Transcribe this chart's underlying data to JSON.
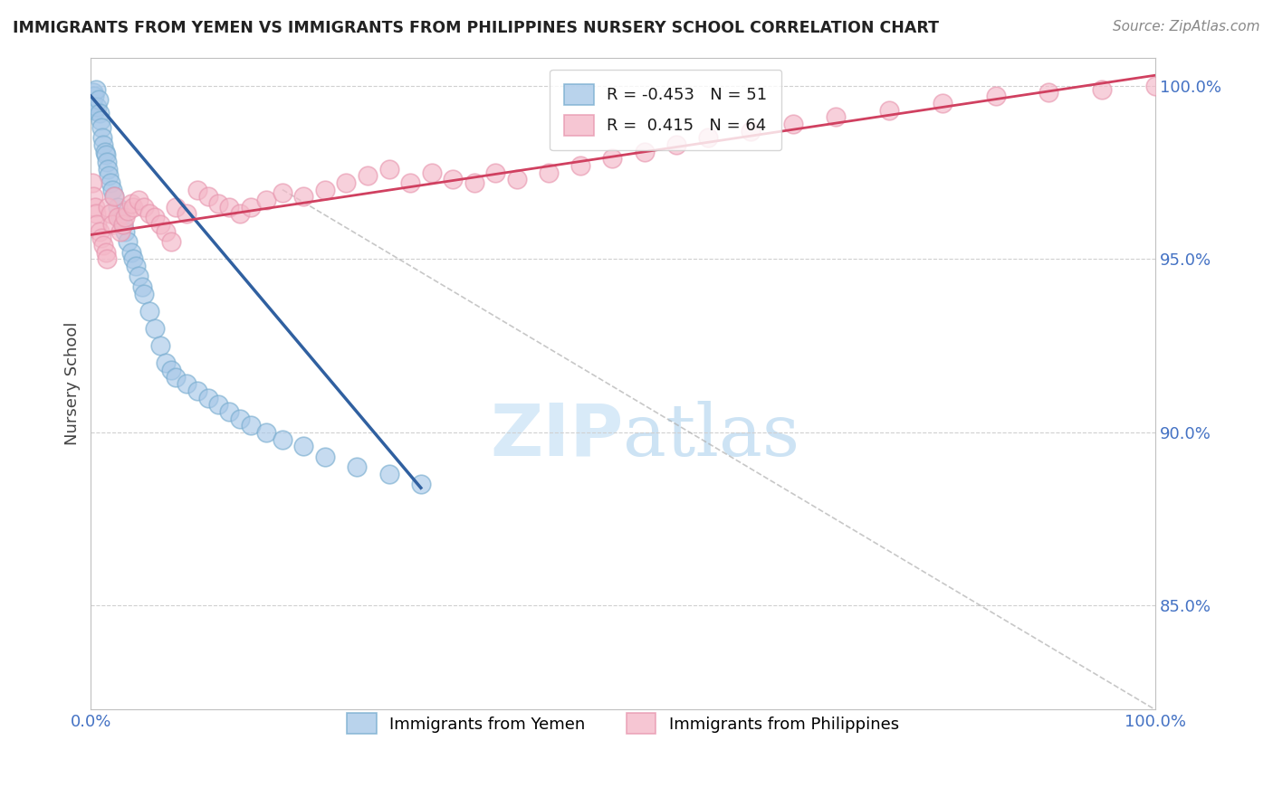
{
  "title": "IMMIGRANTS FROM YEMEN VS IMMIGRANTS FROM PHILIPPINES NURSERY SCHOOL CORRELATION CHART",
  "source": "Source: ZipAtlas.com",
  "ylabel": "Nursery School",
  "legend_R1": "-0.453",
  "legend_N1": "51",
  "legend_R2": "0.415",
  "legend_N2": "64",
  "blue_color": "#a8c8e8",
  "pink_color": "#f4b8c8",
  "blue_edge_color": "#7aaed0",
  "pink_edge_color": "#e898b0",
  "blue_line_color": "#3060a0",
  "pink_line_color": "#d04060",
  "watermark_color": "#d8eaf8",
  "grid_color": "#d0d0d0",
  "axis_color": "#c0c0c0",
  "tick_color": "#4472C4",
  "ylabel_color": "#444444",
  "title_color": "#222222",
  "source_color": "#888888",
  "background_color": "#ffffff",
  "xlim": [
    0.0,
    1.0
  ],
  "ylim": [
    0.82,
    1.008
  ],
  "yticks": [
    0.85,
    0.9,
    0.95,
    1.0
  ],
  "ytick_labels": [
    "85.0%",
    "90.0%",
    "95.0%",
    "100.0%"
  ],
  "yemen_x": [
    0.001,
    0.002,
    0.003,
    0.004,
    0.005,
    0.006,
    0.007,
    0.008,
    0.009,
    0.01,
    0.011,
    0.012,
    0.013,
    0.014,
    0.015,
    0.016,
    0.017,
    0.018,
    0.02,
    0.022,
    0.025,
    0.028,
    0.03,
    0.032,
    0.035,
    0.038,
    0.04,
    0.042,
    0.045,
    0.048,
    0.05,
    0.055,
    0.06,
    0.065,
    0.07,
    0.075,
    0.08,
    0.09,
    0.1,
    0.11,
    0.12,
    0.13,
    0.14,
    0.15,
    0.165,
    0.18,
    0.2,
    0.22,
    0.25,
    0.28,
    0.31
  ],
  "yemen_y": [
    0.995,
    0.998,
    0.997,
    0.993,
    0.999,
    0.994,
    0.996,
    0.992,
    0.99,
    0.988,
    0.985,
    0.983,
    0.981,
    0.98,
    0.978,
    0.976,
    0.974,
    0.972,
    0.97,
    0.968,
    0.965,
    0.962,
    0.96,
    0.958,
    0.955,
    0.952,
    0.95,
    0.948,
    0.945,
    0.942,
    0.94,
    0.935,
    0.93,
    0.925,
    0.92,
    0.918,
    0.916,
    0.914,
    0.912,
    0.91,
    0.908,
    0.906,
    0.904,
    0.902,
    0.9,
    0.898,
    0.896,
    0.893,
    0.89,
    0.888,
    0.885
  ],
  "phil_x": [
    0.001,
    0.002,
    0.004,
    0.005,
    0.006,
    0.008,
    0.01,
    0.012,
    0.014,
    0.015,
    0.016,
    0.018,
    0.02,
    0.022,
    0.025,
    0.028,
    0.03,
    0.032,
    0.035,
    0.038,
    0.04,
    0.045,
    0.05,
    0.055,
    0.06,
    0.065,
    0.07,
    0.075,
    0.08,
    0.09,
    0.1,
    0.11,
    0.12,
    0.13,
    0.14,
    0.15,
    0.165,
    0.18,
    0.2,
    0.22,
    0.24,
    0.26,
    0.28,
    0.3,
    0.32,
    0.34,
    0.36,
    0.38,
    0.4,
    0.43,
    0.46,
    0.49,
    0.52,
    0.55,
    0.58,
    0.62,
    0.66,
    0.7,
    0.75,
    0.8,
    0.85,
    0.9,
    0.95,
    1.0
  ],
  "phil_y": [
    0.972,
    0.968,
    0.965,
    0.963,
    0.96,
    0.958,
    0.956,
    0.954,
    0.952,
    0.95,
    0.965,
    0.963,
    0.96,
    0.968,
    0.962,
    0.958,
    0.96,
    0.962,
    0.964,
    0.966,
    0.965,
    0.967,
    0.965,
    0.963,
    0.962,
    0.96,
    0.958,
    0.955,
    0.965,
    0.963,
    0.97,
    0.968,
    0.966,
    0.965,
    0.963,
    0.965,
    0.967,
    0.969,
    0.968,
    0.97,
    0.972,
    0.974,
    0.976,
    0.972,
    0.975,
    0.973,
    0.972,
    0.975,
    0.973,
    0.975,
    0.977,
    0.979,
    0.981,
    0.983,
    0.985,
    0.987,
    0.989,
    0.991,
    0.993,
    0.995,
    0.997,
    0.998,
    0.999,
    1.0
  ],
  "blue_line_x": [
    0.0,
    0.31
  ],
  "blue_line_y_start": 0.997,
  "blue_line_y_end": 0.884,
  "pink_line_x": [
    0.0,
    1.0
  ],
  "pink_line_y_start": 0.957,
  "pink_line_y_end": 1.003,
  "diag_line_x": [
    0.18,
    1.0
  ],
  "diag_line_y_start": 0.97,
  "diag_line_y_end": 0.82
}
